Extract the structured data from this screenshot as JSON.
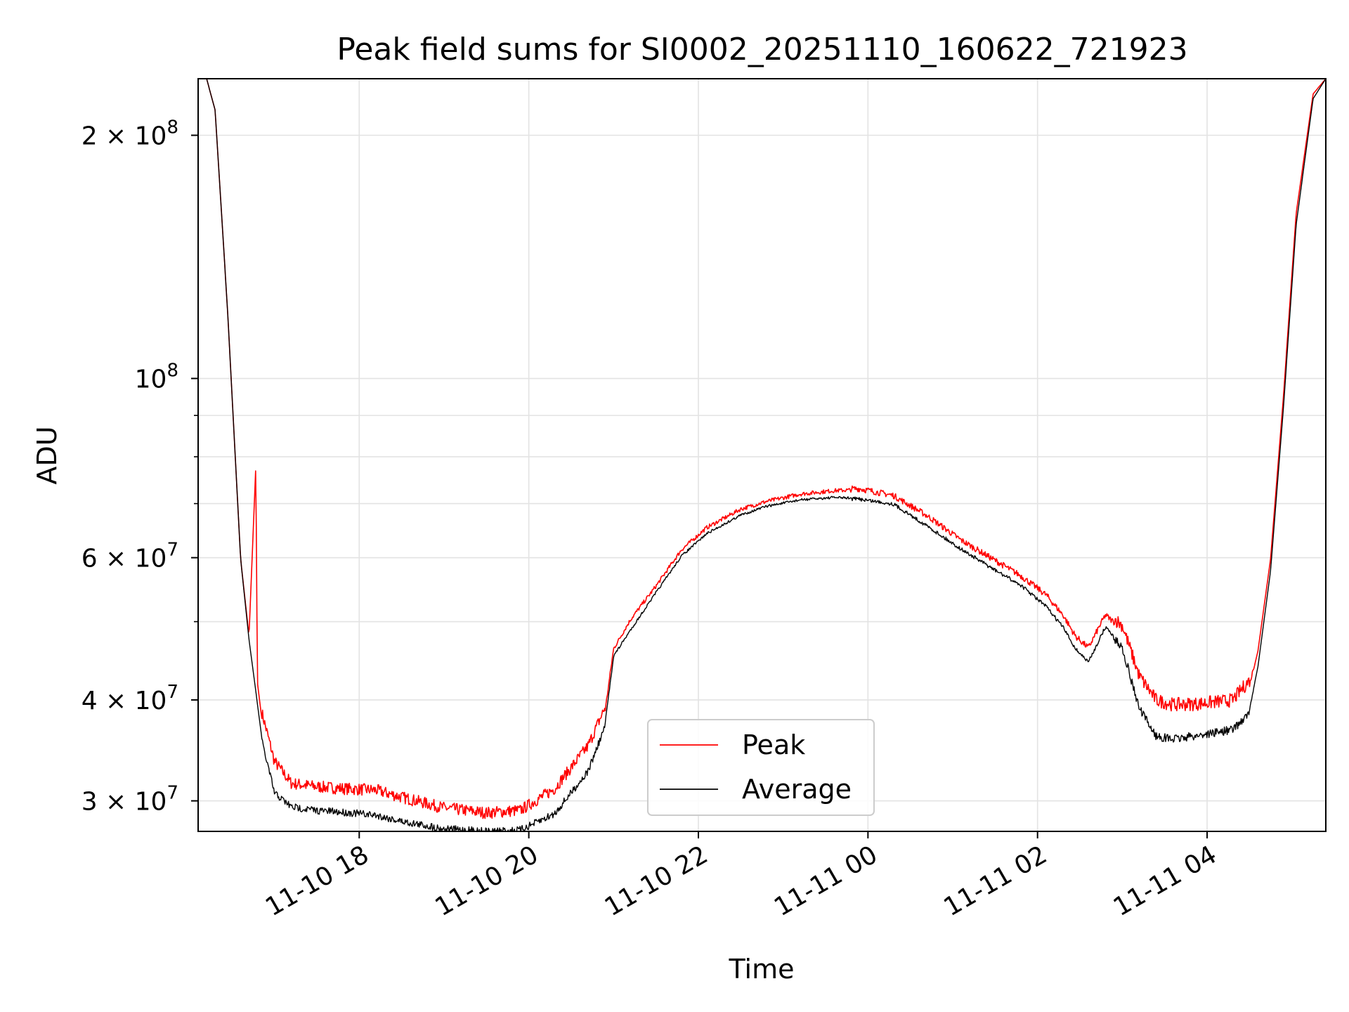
{
  "chart_data": {
    "type": "line",
    "title": "Peak field sums for SI0002_20251110_160622_721923",
    "xlabel": "Time",
    "ylabel": "ADU",
    "yscale": "log",
    "xlim": [
      16.1,
      29.4
    ],
    "ylim": [
      27500000,
      235000000
    ],
    "grid": true,
    "legend_position": "lower-center",
    "x_ticks": [
      {
        "value": 18,
        "label": "11-10 18"
      },
      {
        "value": 20,
        "label": "11-10 20"
      },
      {
        "value": 22,
        "label": "11-10 22"
      },
      {
        "value": 24,
        "label": "11-11 00"
      },
      {
        "value": 26,
        "label": "11-11 02"
      },
      {
        "value": 28,
        "label": "11-11 04"
      }
    ],
    "y_ticks": [
      {
        "value": 30000000,
        "base": "3 × 10",
        "exp": "7"
      },
      {
        "value": 40000000,
        "base": "4 × 10",
        "exp": "7"
      },
      {
        "value": 60000000,
        "base": "6 × 10",
        "exp": "7"
      },
      {
        "value": 100000000,
        "base": "10",
        "exp": "8"
      },
      {
        "value": 200000000,
        "base": "2 × 10",
        "exp": "8"
      }
    ],
    "y_minor_ticks": [
      50000000,
      70000000,
      80000000,
      90000000
    ],
    "series": [
      {
        "name": "Peak",
        "color": "#ff0000",
        "x": [
          16.2,
          16.3,
          16.45,
          16.6,
          16.7,
          16.78,
          16.8,
          16.85,
          17.0,
          17.2,
          17.5,
          17.9,
          18.2,
          18.5,
          19.0,
          19.5,
          19.9,
          20.3,
          20.7,
          20.9,
          21.0,
          21.2,
          21.5,
          21.8,
          22.1,
          22.5,
          22.8,
          23.2,
          23.6,
          23.9,
          24.3,
          24.7,
          25.1,
          25.5,
          25.8,
          26.1,
          26.3,
          26.45,
          26.6,
          26.8,
          27.0,
          27.2,
          27.4,
          27.6,
          27.9,
          28.3,
          28.5,
          28.6,
          28.75,
          28.9,
          29.05,
          29.25,
          29.4
        ],
        "y": [
          235000000,
          215000000,
          120000000,
          60000000,
          48000000,
          78000000,
          42000000,
          38000000,
          33000000,
          31000000,
          30700000,
          30500000,
          30400000,
          29800000,
          28900000,
          28500000,
          28700000,
          30500000,
          34500000,
          38500000,
          46000000,
          50000000,
          55000000,
          61000000,
          65000000,
          68500000,
          70000000,
          71500000,
          72200000,
          72400000,
          71000000,
          67000000,
          62500000,
          59000000,
          56500000,
          53500000,
          50500000,
          47500000,
          46000000,
          50500000,
          48500000,
          42000000,
          39200000,
          38700000,
          38800000,
          39200000,
          41500000,
          46000000,
          60000000,
          95000000,
          160000000,
          225000000,
          235000000
        ]
      },
      {
        "name": "Average",
        "color": "#000000",
        "x": [
          16.2,
          16.3,
          16.45,
          16.6,
          16.7,
          16.78,
          16.85,
          17.0,
          17.2,
          17.5,
          17.9,
          18.2,
          18.5,
          19.0,
          19.5,
          19.9,
          20.3,
          20.7,
          20.9,
          21.0,
          21.2,
          21.5,
          21.8,
          22.1,
          22.5,
          22.8,
          23.2,
          23.6,
          23.9,
          24.3,
          24.7,
          25.1,
          25.5,
          25.8,
          26.1,
          26.3,
          26.45,
          26.6,
          26.8,
          27.0,
          27.2,
          27.4,
          27.6,
          27.9,
          28.3,
          28.5,
          28.6,
          28.75,
          28.9,
          29.05,
          29.25,
          29.4
        ],
        "y": [
          235000000,
          215000000,
          120000000,
          60000000,
          47500000,
          41000000,
          36000000,
          31000000,
          29800000,
          29500000,
          29300000,
          29100000,
          28600000,
          28000000,
          27800000,
          27900000,
          29200000,
          33000000,
          37500000,
          45500000,
          49000000,
          54500000,
          60500000,
          64500000,
          68000000,
          69700000,
          71000000,
          71500000,
          71300000,
          70300000,
          66000000,
          61800000,
          58200000,
          55800000,
          52500000,
          49500000,
          46500000,
          44800000,
          49500000,
          47000000,
          39500000,
          36500000,
          36200000,
          36600000,
          37200000,
          39000000,
          44000000,
          58000000,
          92000000,
          155000000,
          222000000,
          235000000
        ]
      }
    ]
  }
}
